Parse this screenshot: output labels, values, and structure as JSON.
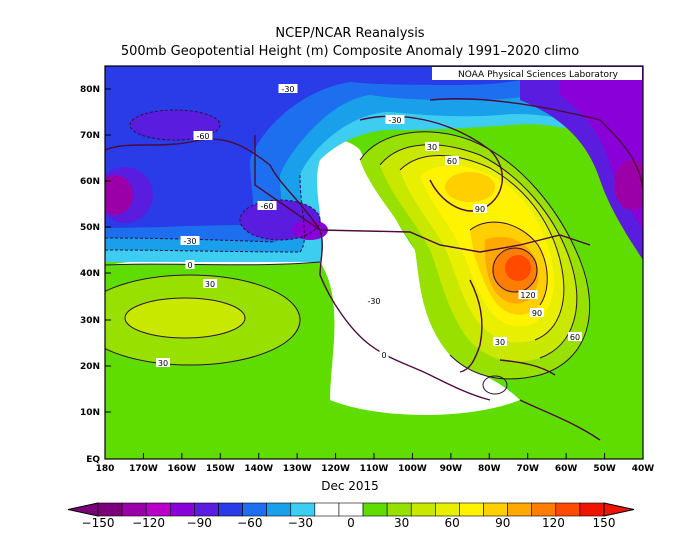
{
  "header": {
    "title_line1": "NCEP/NCAR Reanalysis",
    "title_line2": "500mb Geopotential Height (m) Composite Anomaly 1991–2020 climo"
  },
  "credit": "NOAA Physical Sciences Laboratory",
  "period": "Dec 2015",
  "axes": {
    "lat_labels": [
      "80N",
      "70N",
      "60N",
      "50N",
      "40N",
      "30N",
      "20N",
      "10N",
      "EQ"
    ],
    "lon_labels": [
      "180",
      "170W",
      "160W",
      "150W",
      "140W",
      "130W",
      "120W",
      "110W",
      "100W",
      "90W",
      "80W",
      "70W",
      "60W",
      "50W",
      "40W"
    ]
  },
  "contour_labels": [
    {
      "text": "-30"
    },
    {
      "text": "-60"
    },
    {
      "text": "-30"
    },
    {
      "text": "30"
    },
    {
      "text": "60"
    },
    {
      "text": "-60"
    },
    {
      "text": "90"
    },
    {
      "text": "-30"
    },
    {
      "text": "0"
    },
    {
      "text": "30"
    },
    {
      "text": "120"
    },
    {
      "text": "90"
    },
    {
      "text": "60"
    },
    {
      "text": "-30"
    },
    {
      "text": "0"
    },
    {
      "text": "30"
    },
    {
      "text": "30"
    }
  ],
  "colorbar": {
    "tick_labels": [
      "−150",
      "−120",
      "−90",
      "−60",
      "−30",
      "0",
      "30",
      "60",
      "90",
      "120",
      "150"
    ],
    "colors": [
      "#7a0079",
      "#9b00a8",
      "#b800c8",
      "#8a00d8",
      "#5a1de0",
      "#2a3be8",
      "#1e6ff0",
      "#1aa0ea",
      "#3ccdf0",
      "#ffffff",
      "#ffffff",
      "#5fdd00",
      "#98e000",
      "#c8e800",
      "#e9ef00",
      "#fff300",
      "#ffcf00",
      "#ffa800",
      "#ff7d00",
      "#ff4a00",
      "#ee1400"
    ]
  },
  "colors": {
    "land_outline": "#4d0a3c",
    "contour": "#2a1040"
  }
}
